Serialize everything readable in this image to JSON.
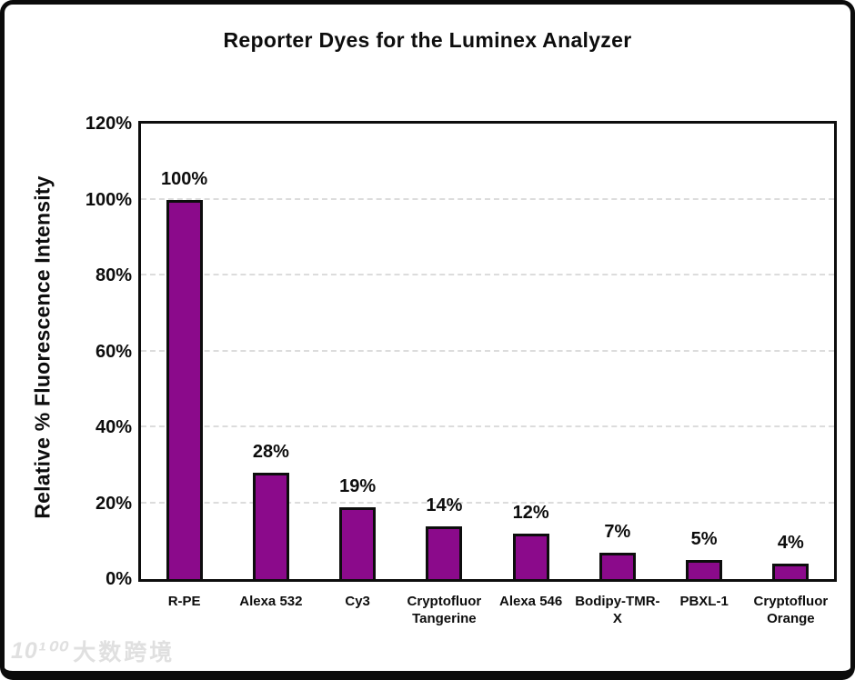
{
  "chart_data": {
    "type": "bar",
    "title": "Reporter Dyes for the Luminex Analyzer",
    "ylabel": "Relative % Fluorescence Intensity",
    "xlabel": "",
    "categories": [
      "R-PE",
      "Alexa 532",
      "Cy3",
      "Cryptofluor Tangerine",
      "Alexa 546",
      "Bodipy-TMR-X",
      "PBXL-1",
      "Cryptofluor Orange"
    ],
    "values": [
      100,
      28,
      19,
      14,
      12,
      7,
      5,
      4
    ],
    "value_labels": [
      "100%",
      "28%",
      "19%",
      "14%",
      "12%",
      "7%",
      "5%",
      "4%"
    ],
    "ylim": [
      0,
      120
    ],
    "ytick_step": 20,
    "ytick_labels": [
      "0%",
      "20%",
      "40%",
      "60%",
      "80%",
      "100%",
      "120%"
    ],
    "grid": "horizontal-dashed",
    "legend_position": "none",
    "bar_color": "#8B0A8B",
    "bar_border_color": "#0D0D0D",
    "gridline_color": "#DCDCDC"
  },
  "watermark": {
    "logo": "10¹⁰⁰",
    "text": "大数跨境"
  }
}
